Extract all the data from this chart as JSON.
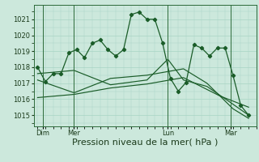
{
  "bg_color": "#cce8dc",
  "grid_color": "#a8d4c4",
  "line_color": "#1a5c28",
  "xlabel": "Pression niveau de la mer( hPa )",
  "xlabel_fontsize": 8,
  "yticks": [
    1015,
    1016,
    1017,
    1018,
    1019,
    1020,
    1021
  ],
  "ylim": [
    1014.3,
    1021.9
  ],
  "xlim": [
    -3,
    168
  ],
  "xtick_labels": [
    "Dim",
    "Mer",
    "Lun",
    "Mar"
  ],
  "xtick_positions": [
    4,
    28,
    100,
    148
  ],
  "vline_positions": [
    4,
    28,
    100,
    148
  ],
  "series1_x": [
    0,
    6,
    12,
    18,
    24,
    30,
    36,
    42,
    48,
    54,
    60,
    66,
    72,
    78,
    84,
    90,
    96,
    102,
    108,
    114,
    120,
    126,
    132,
    138,
    144,
    150,
    156,
    162
  ],
  "series1_y": [
    1018.0,
    1017.1,
    1017.6,
    1017.6,
    1018.9,
    1019.1,
    1018.6,
    1019.5,
    1019.7,
    1019.1,
    1018.7,
    1019.1,
    1021.3,
    1021.45,
    1021.0,
    1021.0,
    1019.5,
    1017.3,
    1016.5,
    1017.05,
    1019.4,
    1019.2,
    1018.7,
    1019.2,
    1019.2,
    1017.5,
    1015.6,
    1015.0
  ],
  "series2_x": [
    0,
    28,
    56,
    84,
    112,
    140,
    162
  ],
  "series2_y": [
    1016.1,
    1016.3,
    1016.7,
    1016.95,
    1017.35,
    1016.2,
    1015.5
  ],
  "series3_x": [
    0,
    28,
    56,
    84,
    112,
    130,
    150,
    162
  ],
  "series3_y": [
    1017.2,
    1016.4,
    1017.3,
    1017.5,
    1017.9,
    1017.0,
    1015.4,
    1014.8
  ],
  "series4_x": [
    0,
    28,
    56,
    84,
    100,
    112,
    130,
    148,
    162
  ],
  "series4_y": [
    1017.6,
    1017.8,
    1016.9,
    1017.2,
    1018.5,
    1017.2,
    1016.8,
    1015.8,
    1015.0
  ]
}
